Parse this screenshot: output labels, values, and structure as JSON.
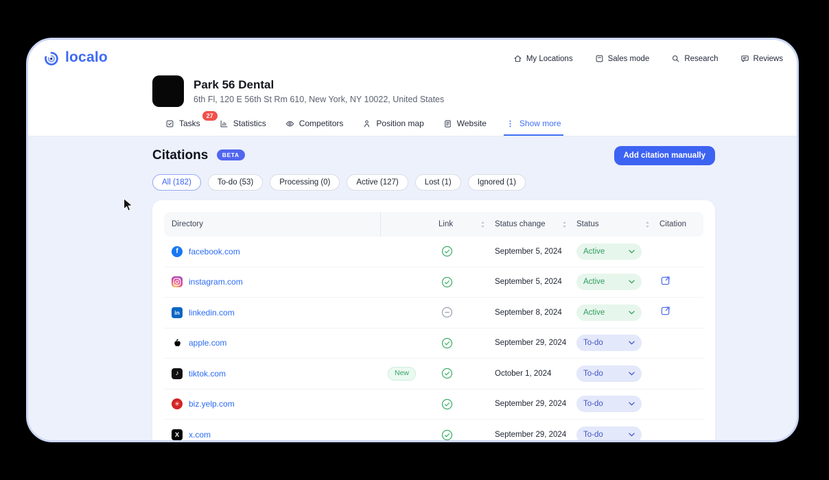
{
  "logo": {
    "text": "localo"
  },
  "top_nav": {
    "items": [
      {
        "label": "My Locations",
        "icon": "home-icon"
      },
      {
        "label": "Sales mode",
        "icon": "sales-mode-icon"
      },
      {
        "label": "Research",
        "icon": "search-icon"
      },
      {
        "label": "Reviews",
        "icon": "reviews-icon"
      }
    ]
  },
  "business": {
    "name": "Park 56 Dental",
    "address": "6th Fl, 120 E 56th St Rm 610, New York, NY 10022, United States"
  },
  "tabs": {
    "items": [
      {
        "label": "Tasks",
        "icon": "tasks-icon",
        "badge": "27"
      },
      {
        "label": "Statistics",
        "icon": "statistics-icon"
      },
      {
        "label": "Competitors",
        "icon": "competitors-icon"
      },
      {
        "label": "Position map",
        "icon": "position-map-icon"
      },
      {
        "label": "Website",
        "icon": "website-icon"
      },
      {
        "label": "Show more",
        "icon": "show-more-icon",
        "active": true
      }
    ]
  },
  "citations": {
    "title": "Citations",
    "beta": "BETA",
    "add_button": "Add citation manually"
  },
  "filters": {
    "items": [
      {
        "label": "All (182)",
        "active": true
      },
      {
        "label": "To-do (53)"
      },
      {
        "label": "Processing (0)"
      },
      {
        "label": "Active (127)"
      },
      {
        "label": "Lost (1)"
      },
      {
        "label": "Ignored (1)"
      }
    ]
  },
  "table": {
    "headers": {
      "directory": "Directory",
      "link": "Link",
      "status_change": "Status change",
      "status": "Status",
      "citation": "Citation"
    },
    "rows": [
      {
        "directory": "facebook.com",
        "icon": "facebook-icon",
        "badge": null,
        "link": "verified",
        "status_change": "September 5, 2024",
        "status": "Active",
        "status_type": "active",
        "citation": false
      },
      {
        "directory": "instagram.com",
        "icon": "instagram-icon",
        "badge": null,
        "link": "verified",
        "status_change": "September 5, 2024",
        "status": "Active",
        "status_type": "active",
        "citation": true
      },
      {
        "directory": "linkedin.com",
        "icon": "linkedin-icon",
        "badge": null,
        "link": "none",
        "status_change": "September 8, 2024",
        "status": "Active",
        "status_type": "active",
        "citation": true
      },
      {
        "directory": "apple.com",
        "icon": "apple-icon",
        "badge": null,
        "link": "verified",
        "status_change": "September 29, 2024",
        "status": "To-do",
        "status_type": "todo",
        "citation": false
      },
      {
        "directory": "tiktok.com",
        "icon": "tiktok-icon",
        "badge": "New",
        "link": "verified",
        "status_change": "October 1, 2024",
        "status": "To-do",
        "status_type": "todo",
        "citation": false
      },
      {
        "directory": "biz.yelp.com",
        "icon": "yelp-icon",
        "badge": null,
        "link": "verified",
        "status_change": "September 29, 2024",
        "status": "To-do",
        "status_type": "todo",
        "citation": false
      },
      {
        "directory": "x.com",
        "icon": "x-icon",
        "badge": null,
        "link": "verified",
        "status_change": "September 29, 2024",
        "status": "To-do",
        "status_type": "todo",
        "citation": false
      }
    ]
  },
  "colors": {
    "accent_blue": "#3d63f3",
    "link_blue": "#2b6bf3",
    "active_text": "#2f9e5f",
    "active_bg": "#e7f6ec",
    "todo_text": "#4454c4",
    "todo_bg": "#e3e8fa",
    "new_badge_text": "#39a065",
    "new_badge_bg": "#eafaf1",
    "tasks_badge_red": "#f2504b",
    "beta_bg": "#5166f0",
    "content_bg": "#edf1fc",
    "window_border": "#ccd7f5"
  }
}
